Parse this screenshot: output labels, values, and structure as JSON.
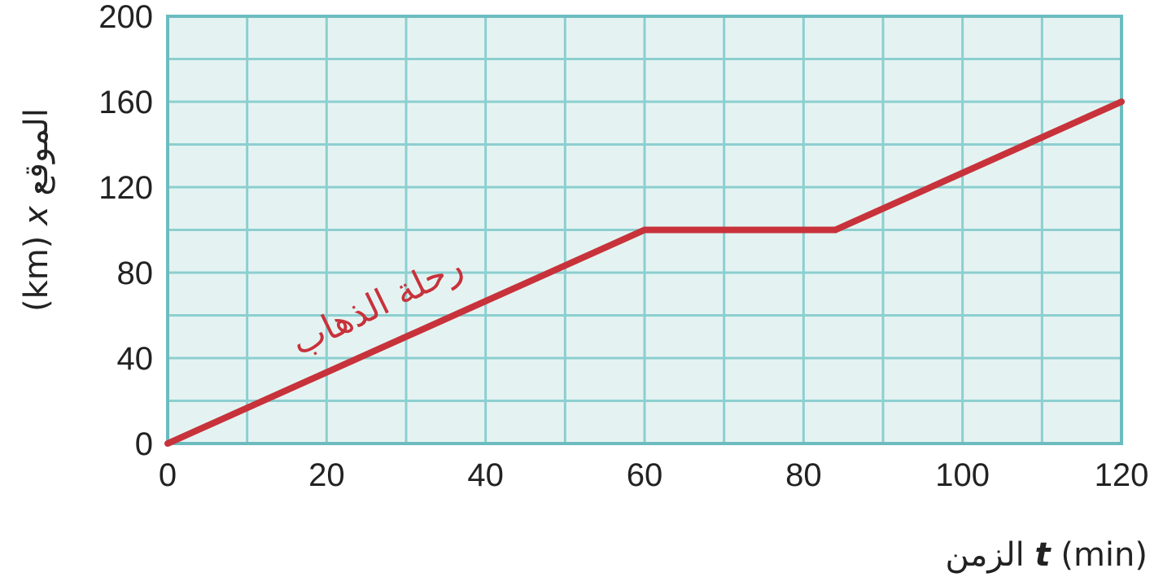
{
  "chart_data": {
    "type": "line",
    "series": [
      {
        "x": [
          0,
          60,
          84,
          120
        ],
        "y": [
          0,
          100,
          100,
          160
        ]
      }
    ],
    "xlabel": {
      "text": "الزمن",
      "symbol": "t",
      "unit": "(min)"
    },
    "ylabel": {
      "text": "الموقع",
      "symbol": "x",
      "unit": "(km)"
    },
    "xlim": [
      0,
      120
    ],
    "ylim": [
      0,
      200
    ],
    "xticks": [
      0,
      20,
      40,
      60,
      80,
      100,
      120
    ],
    "yticks": [
      0,
      40,
      80,
      120,
      160,
      200
    ],
    "x_minor_step": 10,
    "y_minor_step": 20,
    "grid": true,
    "annotations": [
      {
        "text": "رحلة الذهاب",
        "x": 27,
        "y": 60
      }
    ],
    "colors": {
      "line": "#c8323a",
      "plot_background": "#e4f3f2",
      "grid": "#8ccfd0",
      "frame": "#6cbcbf",
      "annotation": "#c8323a"
    }
  }
}
